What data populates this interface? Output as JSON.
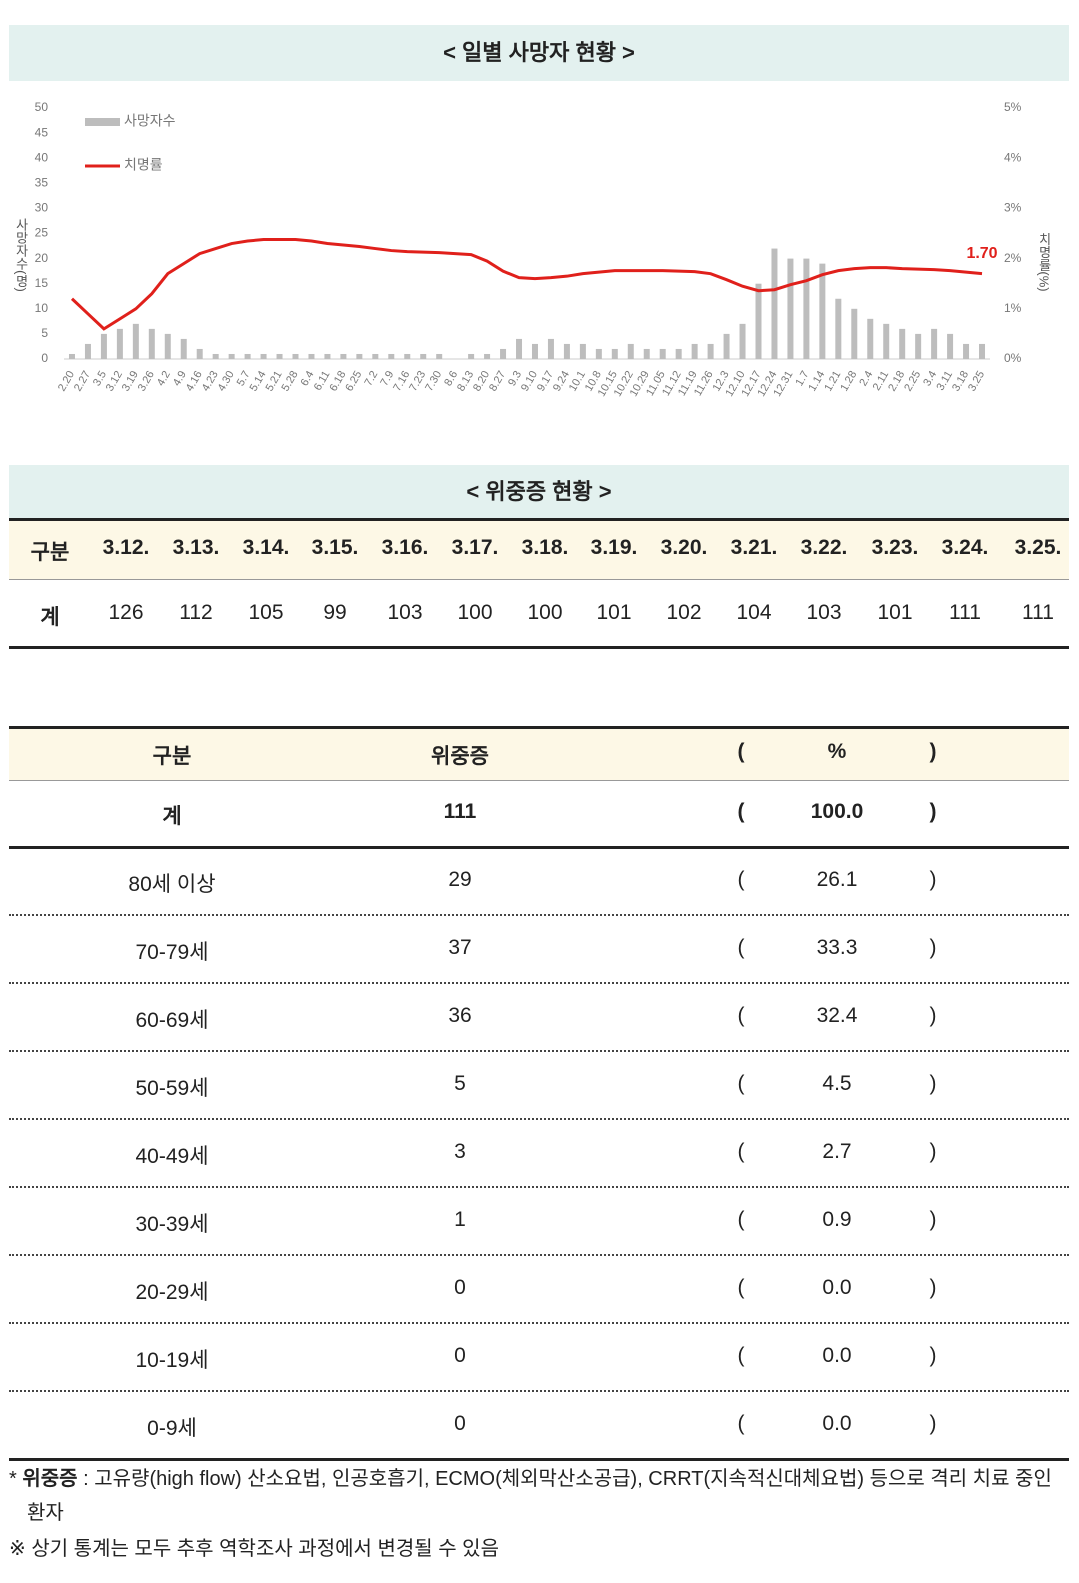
{
  "chart_data": {
    "type": "bar-line",
    "title": "< 일별 사망자 현황 >",
    "categories": [
      "2.20",
      "2.27",
      "3.5",
      "3.12",
      "3.19",
      "3.26",
      "4.2",
      "4.9",
      "4.16",
      "4.23",
      "4.30",
      "5.7",
      "5.14",
      "5.21",
      "5.28",
      "6.4",
      "6.11",
      "6.18",
      "6.25",
      "7.2",
      "7.9",
      "7.16",
      "7.23",
      "7.30",
      "8.6",
      "8.13",
      "8.20",
      "8.27",
      "9.3",
      "9.10",
      "9.17",
      "9.24",
      "10.1",
      "10.8",
      "10.15",
      "10.22",
      "10.29",
      "11.05",
      "11.12",
      "11.19",
      "11.26",
      "12.3",
      "12.10",
      "12.17",
      "12.24",
      "12.31",
      "1.7",
      "1.14",
      "1.21",
      "1.28",
      "2.4",
      "2.11",
      "2.18",
      "2.25",
      "3.4",
      "3.11",
      "3.18",
      "3.25"
    ],
    "series": [
      {
        "name": "사망자수",
        "color": "#bdbdbd",
        "kind": "bar",
        "values": [
          1,
          3,
          5,
          6,
          7,
          6,
          5,
          4,
          2,
          1,
          1,
          1,
          1,
          1,
          1,
          1,
          1,
          1,
          1,
          1,
          1,
          1,
          1,
          1,
          0,
          1,
          1,
          2,
          4,
          3,
          4,
          3,
          3,
          2,
          2,
          3,
          2,
          2,
          2,
          3,
          3,
          5,
          7,
          15,
          22,
          20,
          20,
          19,
          12,
          10,
          8,
          7,
          6,
          5,
          6,
          5,
          3,
          3
        ]
      },
      {
        "name": "치명률",
        "color": "#e0201b",
        "kind": "line",
        "axis": "y2",
        "values": [
          1.2,
          0.9,
          0.6,
          0.8,
          1.0,
          1.3,
          1.7,
          1.9,
          2.1,
          2.2,
          2.3,
          2.35,
          2.38,
          2.38,
          2.38,
          2.35,
          2.3,
          2.27,
          2.24,
          2.2,
          2.16,
          2.14,
          2.13,
          2.12,
          2.1,
          2.08,
          1.95,
          1.75,
          1.62,
          1.6,
          1.62,
          1.65,
          1.7,
          1.73,
          1.76,
          1.76,
          1.76,
          1.76,
          1.75,
          1.74,
          1.7,
          1.58,
          1.45,
          1.36,
          1.38,
          1.48,
          1.56,
          1.68,
          1.76,
          1.8,
          1.82,
          1.82,
          1.8,
          1.79,
          1.78,
          1.76,
          1.73,
          1.7
        ],
        "value_labels": [
          null,
          null,
          null,
          null,
          null,
          null,
          null,
          null,
          null,
          null,
          null,
          null,
          null,
          null,
          null,
          null,
          null,
          null,
          null,
          null,
          null,
          null,
          null,
          null,
          null,
          null,
          null,
          null,
          null,
          null,
          null,
          null,
          null,
          null,
          null,
          null,
          null,
          null,
          null,
          null,
          null,
          null,
          null,
          null,
          null,
          null,
          null,
          null,
          null,
          null,
          null,
          null,
          null,
          null,
          null,
          null,
          null,
          "1.70"
        ]
      }
    ],
    "ylabel": "사망자수(명)",
    "y2label": "치명률(%)",
    "ylim": [
      0,
      50
    ],
    "yticks": [
      0,
      5,
      10,
      15,
      20,
      25,
      30,
      35,
      40,
      45,
      50
    ],
    "y2lim": [
      0,
      5
    ],
    "y2ticks": [
      {
        "value": 0,
        "label": "0%"
      },
      {
        "value": 1,
        "label": "1%"
      },
      {
        "value": 2,
        "label": "2%"
      },
      {
        "value": 3,
        "label": "3%"
      },
      {
        "value": 4,
        "label": "4%"
      },
      {
        "value": 5,
        "label": "5%"
      }
    ],
    "legend": "top-left"
  },
  "table1": {
    "title": "< 위중증 현황 >",
    "header": [
      "구분",
      "3.12.",
      "3.13.",
      "3.14.",
      "3.15.",
      "3.16.",
      "3.17.",
      "3.18.",
      "3.19.",
      "3.20.",
      "3.21.",
      "3.22.",
      "3.23.",
      "3.24.",
      "3.25."
    ],
    "row": [
      "계",
      "126",
      "112",
      "105",
      "99",
      "103",
      "100",
      "100",
      "101",
      "102",
      "104",
      "103",
      "101",
      "111",
      "111"
    ]
  },
  "table2": {
    "header": [
      "구분",
      "위중증",
      "%"
    ],
    "open": "(",
    "close": ")",
    "rows": [
      [
        "계",
        "111",
        "100.0"
      ],
      [
        "80세 이상",
        "29",
        "26.1"
      ],
      [
        "70-79세",
        "37",
        "33.3"
      ],
      [
        "60-69세",
        "36",
        "32.4"
      ],
      [
        "50-59세",
        "5",
        "4.5"
      ],
      [
        "40-49세",
        "3",
        "2.7"
      ],
      [
        "30-39세",
        "1",
        "0.9"
      ],
      [
        "20-29세",
        "0",
        "0.0"
      ],
      [
        "10-19세",
        "0",
        "0.0"
      ],
      [
        "0-9세",
        "0",
        "0.0"
      ]
    ]
  },
  "notes": {
    "marker": "*",
    "term": "위중증",
    "text": ": 고유량(high flow) 산소요법, 인공호흡기, ECMO(체외막산소공급), CRRT(지속적신대체요법) 등으로 격리 치료 중인 환자",
    "note2": "※ 상기 통계는 모두 추후 역학조사 과정에서 변경될 수 있음"
  }
}
